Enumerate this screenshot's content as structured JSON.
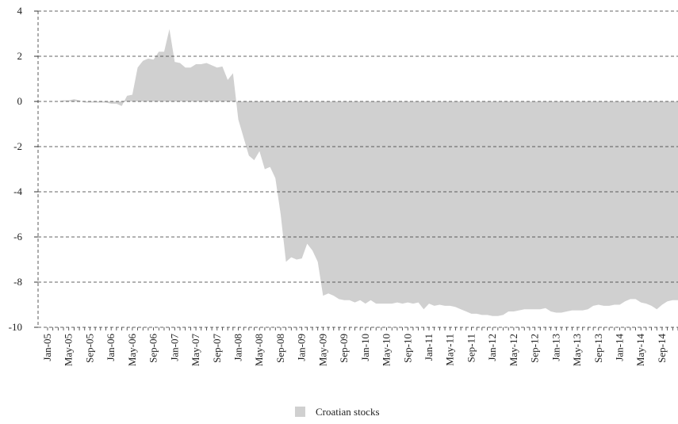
{
  "chart_data": {
    "type": "area",
    "categories": [
      "Jan-05",
      null,
      null,
      null,
      "May-05",
      null,
      null,
      null,
      "Sep-05",
      null,
      null,
      null,
      "Jan-06",
      null,
      null,
      null,
      "May-06",
      null,
      null,
      null,
      "Sep-06",
      null,
      null,
      null,
      "Jan-07",
      null,
      null,
      null,
      "May-07",
      null,
      null,
      null,
      "Sep-07",
      null,
      null,
      null,
      "Jan-08",
      null,
      null,
      null,
      "May-08",
      null,
      null,
      null,
      "Sep-08",
      null,
      null,
      null,
      "Jan-09",
      null,
      null,
      null,
      "May-09",
      null,
      null,
      null,
      "Sep-09",
      null,
      null,
      null,
      "Jan-10",
      null,
      null,
      null,
      "May-10",
      null,
      null,
      null,
      "Sep-10",
      null,
      null,
      null,
      "Jan-11",
      null,
      null,
      null,
      "May-11",
      null,
      null,
      null,
      "Sep-11",
      null,
      null,
      null,
      "Jan-12",
      null,
      null,
      null,
      "May-12",
      null,
      null,
      null,
      "Sep-12",
      null,
      null,
      null,
      "Jan-13",
      null,
      null,
      null,
      "May-13",
      null,
      null,
      null,
      "Sep-13",
      null,
      null,
      null,
      "Jan-14",
      null,
      null,
      null,
      "May-14",
      null,
      null,
      null,
      "Sep-14",
      null,
      null,
      null
    ],
    "series": [
      {
        "name": "Croatian stocks",
        "color": "#d0d0d0",
        "values": [
          0,
          0,
          0,
          0.05,
          0.05,
          0.1,
          0.05,
          -0.05,
          -0.05,
          -0.05,
          -0.05,
          -0.05,
          -0.1,
          -0.1,
          -0.2,
          0.25,
          0.3,
          1.5,
          1.8,
          1.9,
          1.85,
          2.2,
          2.2,
          3.2,
          1.75,
          1.7,
          1.5,
          1.5,
          1.65,
          1.65,
          1.7,
          1.6,
          1.5,
          1.55,
          0.95,
          1.25,
          -0.8,
          -1.6,
          -2.4,
          -2.6,
          -2.2,
          -3.0,
          -2.9,
          -3.4,
          -5.0,
          -7.1,
          -6.9,
          -7.0,
          -6.95,
          -6.3,
          -6.6,
          -7.1,
          -8.6,
          -8.5,
          -8.6,
          -8.75,
          -8.8,
          -8.8,
          -8.9,
          -8.8,
          -8.95,
          -8.8,
          -8.95,
          -8.95,
          -8.95,
          -8.95,
          -8.9,
          -8.95,
          -8.9,
          -8.95,
          -8.9,
          -9.2,
          -8.95,
          -9.05,
          -9.0,
          -9.05,
          -9.05,
          -9.1,
          -9.2,
          -9.3,
          -9.4,
          -9.4,
          -9.45,
          -9.45,
          -9.5,
          -9.5,
          -9.45,
          -9.3,
          -9.3,
          -9.25,
          -9.2,
          -9.2,
          -9.2,
          -9.2,
          -9.15,
          -9.3,
          -9.35,
          -9.35,
          -9.3,
          -9.25,
          -9.25,
          -9.25,
          -9.2,
          -9.05,
          -9.0,
          -9.05,
          -9.05,
          -9.0,
          -9.0,
          -8.85,
          -8.75,
          -8.75,
          -8.9,
          -8.95,
          -9.05,
          -9.2,
          -9.0,
          -8.85,
          -8.8,
          -8.8
        ]
      }
    ],
    "ylim": [
      -10,
      4
    ],
    "yticks": [
      -10,
      -8,
      -6,
      -4,
      -2,
      0,
      2,
      4
    ],
    "grid": true
  }
}
